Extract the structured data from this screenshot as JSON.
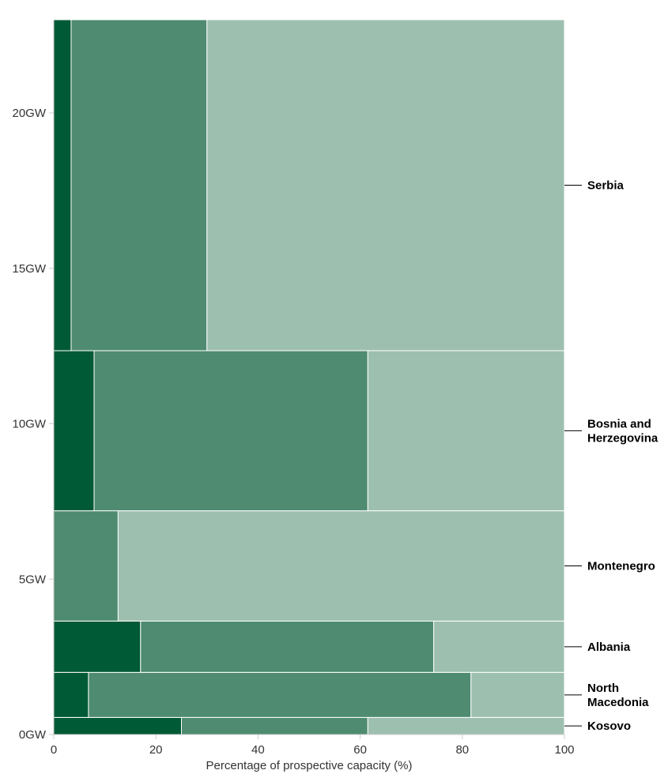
{
  "chart_data": {
    "type": "mekko",
    "title": "",
    "xlabel": "Percentage of prospective capacity (%)",
    "ylabel": "",
    "xlim": [
      0,
      100
    ],
    "ylim": [
      0,
      23
    ],
    "x_ticks": [
      0,
      20,
      40,
      60,
      80,
      100
    ],
    "y_ticks": [
      0,
      5,
      10,
      15,
      20
    ],
    "y_tick_labels": [
      "0GW",
      "5GW",
      "10GW",
      "15GW",
      "20GW"
    ],
    "grid": false,
    "legend": "none",
    "segment_colors": [
      "#005a36",
      "#4e8b70",
      "#9dbfb0"
    ],
    "countries": [
      {
        "name": "Kosovo",
        "lines": [
          "Kosovo"
        ],
        "capacity_gw": 0.55,
        "segments": [
          25,
          36.5,
          38.5
        ]
      },
      {
        "name": "North Macedonia",
        "lines": [
          "North",
          "Macedonia"
        ],
        "capacity_gw": 1.45,
        "segments": [
          6.8,
          74.9,
          18.3
        ]
      },
      {
        "name": "Albania",
        "lines": [
          "Albania"
        ],
        "capacity_gw": 1.65,
        "segments": [
          17,
          57.4,
          25.6
        ]
      },
      {
        "name": "Montenegro",
        "lines": [
          "Montenegro"
        ],
        "capacity_gw": 3.55,
        "segments": [
          0,
          12.6,
          87.4
        ]
      },
      {
        "name": "Bosnia and Herzegovina",
        "lines": [
          "Bosnia and",
          "Herzegovina"
        ],
        "capacity_gw": 5.15,
        "segments": [
          7.9,
          53.6,
          38.5
        ]
      },
      {
        "name": "Serbia",
        "lines": [
          "Serbia"
        ],
        "capacity_gw": 10.65,
        "segments": [
          3.4,
          26.6,
          70
        ]
      }
    ]
  }
}
